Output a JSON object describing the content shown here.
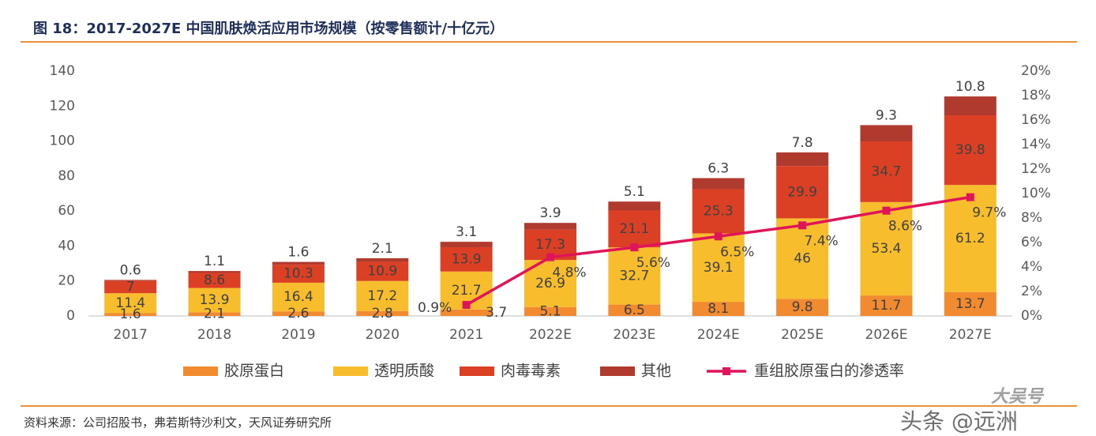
{
  "title": "图 18：2017-2027E 中国肌肤焕活应用市场规模（按零售额计/十亿元）",
  "source": "资料来源：公司招股书，弗若斯特沙利文，天风证券研究所",
  "watermark": "头条 @远洲",
  "watermark_brand": "大吴号",
  "colors": {
    "collagen": "#f28a30",
    "hyaluronic": "#f7bd2d",
    "botulinum": "#dc4024",
    "other": "#b03a2e",
    "penetration": "#e0145a",
    "rule": "#e8923a"
  },
  "chart_data": {
    "type": "bar",
    "stacked": true,
    "categories": [
      "2017",
      "2018",
      "2019",
      "2020",
      "2021",
      "2022E",
      "2023E",
      "2024E",
      "2025E",
      "2026E",
      "2027E"
    ],
    "series": [
      {
        "name": "胶原蛋白",
        "values": [
          1.6,
          2.1,
          2.6,
          2.8,
          3.7,
          5.1,
          6.5,
          8.1,
          9.8,
          11.7,
          13.7
        ]
      },
      {
        "name": "透明质酸",
        "values": [
          11.4,
          13.9,
          16.4,
          17.2,
          21.7,
          26.9,
          32.7,
          39.1,
          46,
          53.4,
          61.2
        ]
      },
      {
        "name": "肉毒毒素",
        "values": [
          7,
          8.6,
          10.3,
          10.9,
          13.9,
          17.3,
          21.1,
          25.3,
          29.9,
          34.7,
          39.8
        ]
      },
      {
        "name": "其他",
        "values": [
          0.6,
          1.1,
          1.6,
          2.1,
          3.1,
          3.9,
          5.1,
          6.3,
          7.8,
          9.3,
          10.8
        ]
      }
    ],
    "line_series": {
      "name": "重组胶原蛋白的渗透率",
      "axis": "right",
      "x": [
        "2021",
        "2022E",
        "2023E",
        "2024E",
        "2025E",
        "2026E",
        "2027E"
      ],
      "values": [
        0.9,
        4.8,
        5.6,
        6.5,
        7.4,
        8.6,
        9.7
      ],
      "labels": [
        "0.9%",
        "4.8%",
        "5.6%",
        "6.5%",
        "7.4%",
        "8.6%",
        "9.7%"
      ]
    },
    "y_left": {
      "min": 0,
      "max": 140,
      "ticks": [
        "0",
        "20",
        "40",
        "60",
        "80",
        "100",
        "120",
        "140"
      ]
    },
    "y_right": {
      "min": 0,
      "max": 20,
      "ticks": [
        "0%",
        "2%",
        "4%",
        "6%",
        "8%",
        "10%",
        "12%",
        "14%",
        "16%",
        "18%",
        "20%"
      ]
    },
    "grid": false,
    "legend_position": "bottom",
    "legend": [
      "胶原蛋白",
      "透明质酸",
      "肉毒毒素",
      "其他",
      "重组胶原蛋白的渗透率"
    ]
  }
}
